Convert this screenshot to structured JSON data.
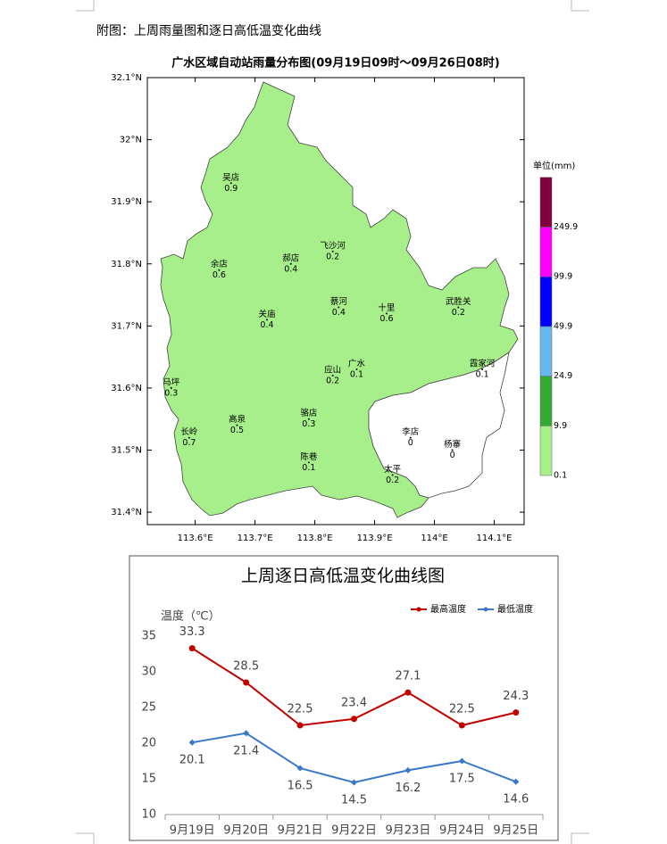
{
  "caption": "附图：上周雨量图和逐日高低温变化曲线",
  "map": {
    "title": "广水区域自动站雨量分布图(09月19日09时～09月26日08时)",
    "xlim": [
      113.52,
      114.15
    ],
    "ylim": [
      31.38,
      32.1
    ],
    "xticks": [
      {
        "value": 113.6,
        "label": "113.6°E"
      },
      {
        "value": 113.7,
        "label": "113.7°E"
      },
      {
        "value": 113.8,
        "label": "113.8°E"
      },
      {
        "value": 113.9,
        "label": "113.9°E"
      },
      {
        "value": 114,
        "label": "114°E"
      },
      {
        "value": 114.1,
        "label": "114.1°E"
      }
    ],
    "yticks": [
      {
        "value": 31.4,
        "label": "31.4°N"
      },
      {
        "value": 31.5,
        "label": "31.5°N"
      },
      {
        "value": 31.6,
        "label": "31.6°N"
      },
      {
        "value": 31.7,
        "label": "31.7°N"
      },
      {
        "value": 31.8,
        "label": "31.8°N"
      },
      {
        "value": 31.9,
        "label": "31.9°N"
      },
      {
        "value": 32,
        "label": "32°N"
      },
      {
        "value": 32.1,
        "label": "32.1°N"
      }
    ],
    "stations": [
      {
        "name": "吴店",
        "value": 0.9,
        "lon": 113.66,
        "lat": 31.93
      },
      {
        "name": "余店",
        "value": 0.6,
        "lon": 113.64,
        "lat": 31.79
      },
      {
        "name": "郝店",
        "value": 0.4,
        "lon": 113.76,
        "lat": 31.8
      },
      {
        "name": "飞沙河",
        "value": 0.2,
        "lon": 113.83,
        "lat": 31.82
      },
      {
        "name": "关庙",
        "value": 0.4,
        "lon": 113.72,
        "lat": 31.71
      },
      {
        "name": "蔡河",
        "value": 0.4,
        "lon": 113.84,
        "lat": 31.73
      },
      {
        "name": "十里",
        "value": 0.6,
        "lon": 113.92,
        "lat": 31.72
      },
      {
        "name": "武胜关",
        "value": 0.2,
        "lon": 114.04,
        "lat": 31.73
      },
      {
        "name": "马坪",
        "value": 0.3,
        "lon": 113.56,
        "lat": 31.6
      },
      {
        "name": "应山",
        "value": 0.2,
        "lon": 113.83,
        "lat": 31.62
      },
      {
        "name": "广水",
        "value": 0.1,
        "lon": 113.87,
        "lat": 31.63
      },
      {
        "name": "霞家河",
        "value": 0.1,
        "lon": 114.08,
        "lat": 31.63
      },
      {
        "name": "长岭",
        "value": 0.7,
        "lon": 113.59,
        "lat": 31.52
      },
      {
        "name": "高泉",
        "value": 0.5,
        "lon": 113.67,
        "lat": 31.54
      },
      {
        "name": "骆店",
        "value": 0.3,
        "lon": 113.79,
        "lat": 31.55
      },
      {
        "name": "陈巷",
        "value": 0.1,
        "lon": 113.79,
        "lat": 31.48
      },
      {
        "name": "太平",
        "value": 0.2,
        "lon": 113.93,
        "lat": 31.46
      },
      {
        "name": "李店",
        "value": 0,
        "lon": 113.96,
        "lat": 31.52
      },
      {
        "name": "杨寨",
        "value": 0,
        "lon": 114.03,
        "lat": 31.5
      }
    ],
    "legend": {
      "title": "单位(mm)",
      "levels": [
        0.1,
        9.9,
        24.9,
        49.9,
        99.9,
        249.9
      ],
      "colors": [
        "#a6ef8a",
        "#33aa33",
        "#66b8f0",
        "#0000ff",
        "#ff00ff",
        "#800040"
      ]
    }
  },
  "chart_data": {
    "type": "line",
    "title": "上周逐日高低温变化曲线图",
    "y_label": "温度（℃）",
    "categories": [
      "9月19日",
      "9月20日",
      "9月21日",
      "9月22日",
      "9月23日",
      "9月24日",
      "9月25日"
    ],
    "series": [
      {
        "name": "最高温度",
        "color": "#c00000",
        "values": [
          33.3,
          28.5,
          22.5,
          23.4,
          27.1,
          22.5,
          24.3
        ]
      },
      {
        "name": "最低温度",
        "color": "#3a78c8",
        "values": [
          20.1,
          21.4,
          16.5,
          14.5,
          16.2,
          17.5,
          14.6
        ]
      }
    ],
    "ylim": [
      10,
      35
    ],
    "yticks": [
      10,
      15,
      20,
      25,
      30,
      35
    ],
    "legend": "top-right"
  }
}
